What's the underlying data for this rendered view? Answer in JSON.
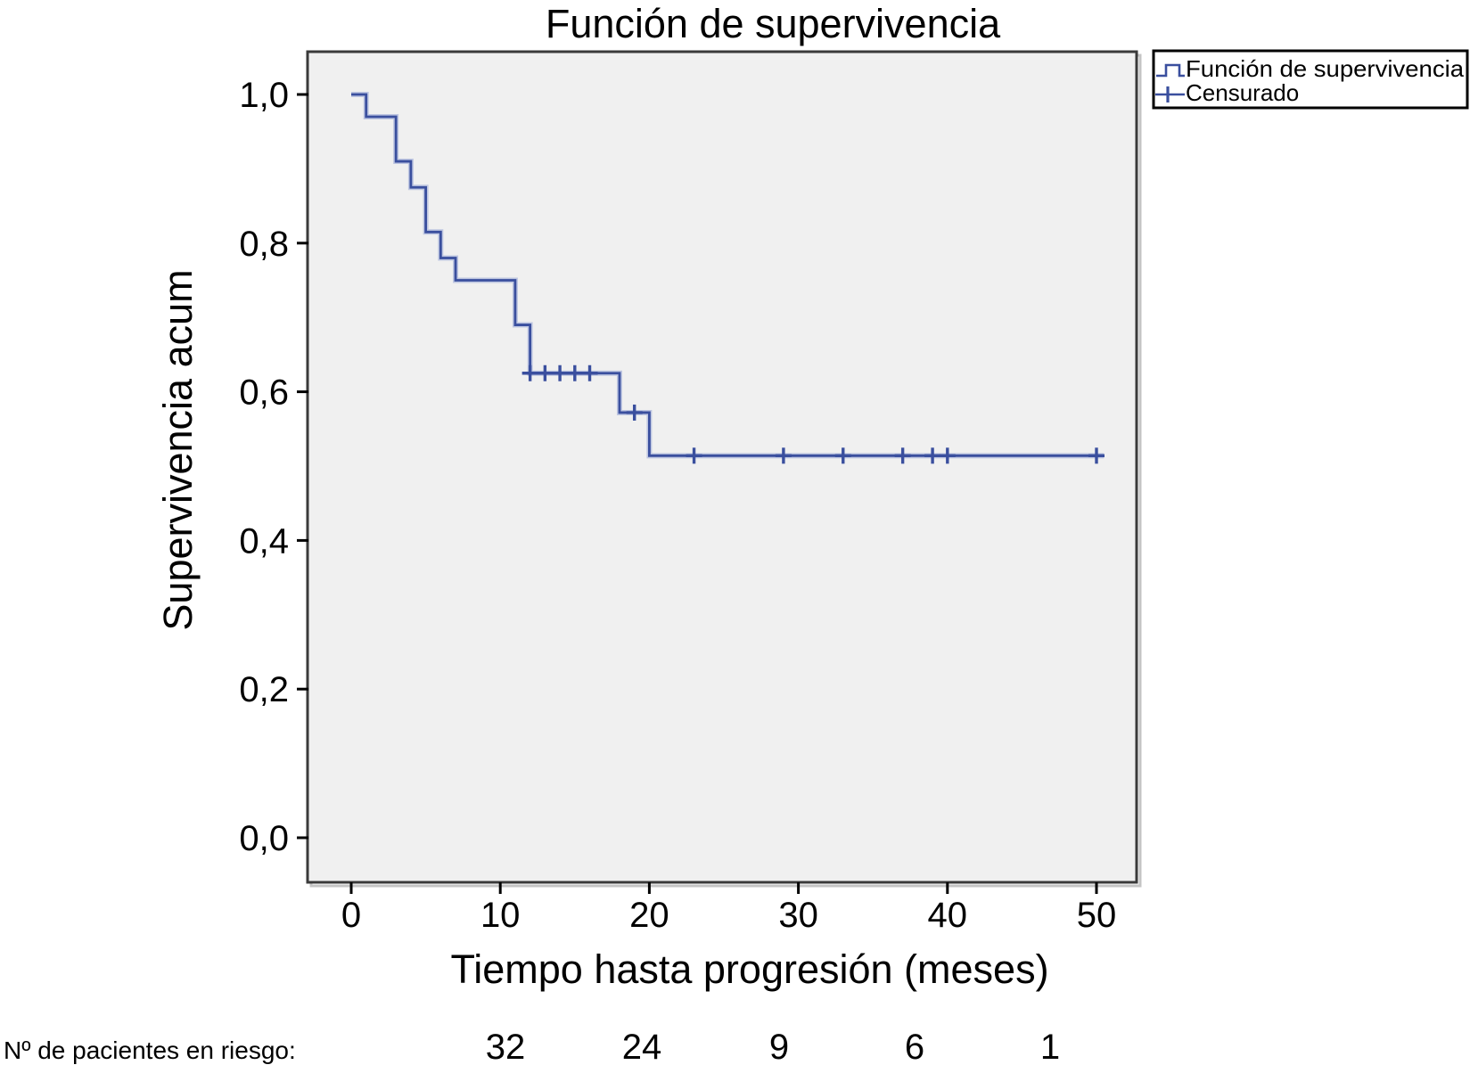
{
  "chart_data": {
    "type": "line",
    "subtype": "kaplan-meier-step",
    "title": "Función de supervivencia",
    "xlabel": "Tiempo hasta progresión (meses)",
    "ylabel": "Supervivencia acum",
    "xlim": [
      -3,
      53
    ],
    "ylim": [
      -0.06,
      1.06
    ],
    "x_ticks": [
      0,
      10,
      20,
      30,
      40,
      50
    ],
    "x_tick_labels": [
      "0",
      "10",
      "20",
      "30",
      "40",
      "50"
    ],
    "y_ticks": [
      0.0,
      0.2,
      0.4,
      0.6,
      0.8,
      1.0
    ],
    "y_tick_labels": [
      "0,0",
      "0,2",
      "0,4",
      "0,6",
      "0,8",
      "1,0"
    ],
    "grid": false,
    "legend_position": "top-right",
    "legend": [
      {
        "label": "Función de supervivencia",
        "marker": "step-line"
      },
      {
        "label": "Censurado",
        "marker": "plus"
      }
    ],
    "series": [
      {
        "name": "Función de supervivencia",
        "color": "#3A4F9E",
        "step_points": [
          [
            0,
            1.0
          ],
          [
            1,
            0.97
          ],
          [
            3,
            0.91
          ],
          [
            4,
            0.875
          ],
          [
            5,
            0.815
          ],
          [
            6,
            0.78
          ],
          [
            7,
            0.75
          ],
          [
            11,
            0.69
          ],
          [
            12,
            0.625
          ],
          [
            18,
            0.572
          ],
          [
            20,
            0.514
          ]
        ],
        "end_time": 50.5
      }
    ],
    "censored": {
      "name": "Censurado",
      "color": "#3A4F9E",
      "points": [
        [
          12,
          0.625
        ],
        [
          13,
          0.625
        ],
        [
          14,
          0.625
        ],
        [
          15,
          0.625
        ],
        [
          16,
          0.625
        ],
        [
          19,
          0.572
        ],
        [
          23,
          0.514
        ],
        [
          29,
          0.514
        ],
        [
          33,
          0.514
        ],
        [
          37,
          0.514
        ],
        [
          39,
          0.514
        ],
        [
          40,
          0.514
        ],
        [
          50,
          0.514
        ]
      ]
    },
    "risk_table": {
      "label": "Nº de pacientes en riesgo:",
      "times": [
        10,
        20,
        30,
        40,
        50
      ],
      "counts": [
        "32",
        "24",
        "9",
        "6",
        "1"
      ]
    }
  },
  "colors": {
    "curve": "#3A4F9E",
    "curve_halo": "#96A4D6",
    "plot_bg": "#F0F0F0",
    "plot_border": "#3A3A3A",
    "tick": "#000000",
    "legend_bg": "#FFFFFF",
    "legend_border": "#000000",
    "text": "#000000"
  }
}
